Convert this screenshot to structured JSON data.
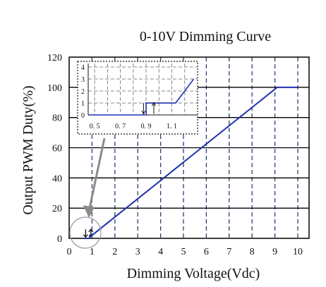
{
  "chart_data": [
    {
      "type": "line",
      "title": "0-10V Dimming Curve",
      "xlabel": "Dimming Voltage(Vdc)",
      "ylabel": "Output PWM Duty(%)",
      "xlim": [
        0,
        10.5
      ],
      "ylim": [
        0,
        120
      ],
      "x_ticks": [
        "0",
        "1",
        "2",
        "3",
        "4",
        "5",
        "6",
        "7",
        "8",
        "9",
        "10"
      ],
      "y_ticks": [
        "0",
        "20",
        "40",
        "60",
        "80",
        "100",
        "120"
      ],
      "grid": "vertical dashed, horizontal solid",
      "series": [
        {
          "color": "#1f2fb0",
          "points": [
            [
              0.6,
              0
            ],
            [
              0.9,
              0
            ],
            [
              0.9,
              2
            ],
            [
              1.0,
              2
            ],
            [
              9.1,
              100
            ],
            [
              10.0,
              100
            ]
          ]
        }
      ]
    },
    {
      "type": "line",
      "inset": true,
      "xlim": [
        0.45,
        1.3
      ],
      "ylim": [
        0,
        4.3
      ],
      "x_ticks": [
        "0. 5",
        "0. 7",
        "0. 9",
        "1. 1"
      ],
      "y_ticks": [
        "0",
        "1",
        "2",
        "3",
        "4"
      ],
      "grid": "dashed",
      "series": [
        {
          "color": "#1f2fb0",
          "points": [
            [
              0.45,
              0
            ],
            [
              0.9,
              0
            ],
            [
              0.9,
              1
            ],
            [
              1.13,
              1
            ],
            [
              1.27,
              3
            ]
          ]
        }
      ]
    }
  ]
}
